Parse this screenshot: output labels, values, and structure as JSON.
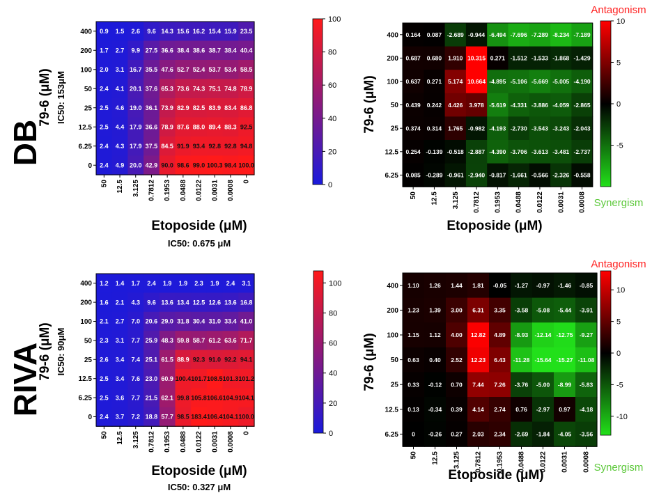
{
  "row_labels": [
    "DB",
    "RIVA"
  ],
  "legend_text": {
    "antagonism": "Antagonism",
    "synergism": "Synergism"
  },
  "colors": {
    "blue": "#1a1adc",
    "red": "#ff1a1a",
    "synergy_green": "#22e01a",
    "antagonism_red": "#ff0000",
    "black": "#000000",
    "antagonism_label": "#ff2020",
    "synergism_label": "#5cc83a"
  },
  "chart_data": [
    {
      "type": "heatmap",
      "ylabel": "79-6 (μM)",
      "ylabel_sub": "IC50: 153μM",
      "xlabel": "Etoposide (μM)",
      "xlabel_sub": "IC50: 0.675 μM",
      "x": [
        "50",
        "12.5",
        "3.125",
        "0.7812",
        "0.1953",
        "0.0488",
        "0.0122",
        "0.0031",
        "0.0008",
        "0"
      ],
      "y": [
        "400",
        "200",
        "100",
        "50",
        "25",
        "12.5",
        "6.25",
        "0"
      ],
      "values": [
        [
          0.9,
          1.5,
          2.6,
          9.6,
          14.3,
          15.6,
          16.2,
          15.4,
          15.9,
          23.5
        ],
        [
          1.7,
          2.7,
          9.9,
          27.5,
          36.6,
          38.4,
          38.6,
          38.7,
          38.4,
          40.4
        ],
        [
          2.0,
          3.1,
          16.7,
          35.5,
          47.6,
          52.7,
          52.4,
          53.7,
          53.4,
          58.5
        ],
        [
          2.4,
          4.1,
          20.1,
          37.6,
          65.3,
          73.6,
          74.3,
          75.1,
          74.8,
          78.9
        ],
        [
          2.5,
          4.6,
          19.0,
          36.1,
          73.9,
          82.9,
          82.5,
          83.9,
          83.4,
          86.8
        ],
        [
          2.5,
          4.4,
          17.9,
          36.6,
          78.9,
          87.6,
          88.0,
          89.4,
          88.3,
          92.5
        ],
        [
          2.4,
          4.3,
          17.9,
          37.5,
          84.5,
          91.9,
          93.4,
          92.8,
          92.8,
          94.8
        ],
        [
          2.4,
          4.9,
          20.0,
          42.9,
          90.0,
          98.6,
          99.0,
          100.3,
          98.4,
          100.0
        ]
      ],
      "labels": [
        [
          "0.9",
          "1.5",
          "2.6",
          "9.6",
          "14.3",
          "15.6",
          "16.2",
          "15.4",
          "15.9",
          "23.5"
        ],
        [
          "1.7",
          "2.7",
          "9.9",
          "27.5",
          "36.6",
          "38.4",
          "38.6",
          "38.7",
          "38.4",
          "40.4"
        ],
        [
          "2.0",
          "3.1",
          "16.7",
          "35.5",
          "47.6",
          "52.7",
          "52.4",
          "53.7",
          "53.4",
          "58.5"
        ],
        [
          "2.4",
          "4.1",
          "20.1",
          "37.6",
          "65.3",
          "73.6",
          "74.3",
          "75.1",
          "74.8",
          "78.9"
        ],
        [
          "2.5",
          "4.6",
          "19.0",
          "36.1",
          "73.9",
          "82.9",
          "82.5",
          "83.9",
          "83.4",
          "86.8"
        ],
        [
          "2.5",
          "4.4",
          "17.9",
          "36.6",
          "78.9",
          "87.6",
          "88.0",
          "89.4",
          "88.3",
          "92.5"
        ],
        [
          "2.4",
          "4.3",
          "17.9",
          "37.5",
          "84.5",
          "91.9",
          "93.4",
          "92.8",
          "92.8",
          "94.8"
        ],
        [
          "2.4",
          "4.9",
          "20.0",
          "42.9",
          "90.0",
          "98.6",
          "99.0",
          "100.3",
          "98.4",
          "100.0"
        ]
      ],
      "color_range": [
        0,
        100
      ],
      "colorbar_ticks": [
        "0",
        "20",
        "40",
        "60",
        "80",
        "100"
      ],
      "colorbar_tick_values": [
        0,
        20,
        40,
        60,
        80,
        100
      ]
    },
    {
      "type": "heatmap",
      "ylabel": "79-6 (μM)",
      "xlabel": "Etoposide (μM)",
      "x": [
        "50",
        "12.5",
        "3.125",
        "0.7812",
        "0.1953",
        "0.0488",
        "0.0122",
        "0.0031",
        "0.0008"
      ],
      "y": [
        "400",
        "200",
        "100",
        "50",
        "25",
        "12.5",
        "6.25"
      ],
      "values": [
        [
          0.164,
          0.087,
          -2.689,
          -0.944,
          -6.494,
          -7.696,
          -7.289,
          -8.234,
          -7.189
        ],
        [
          0.687,
          0.68,
          1.91,
          10.315,
          0.271,
          -1.512,
          -1.533,
          -1.868,
          -1.429
        ],
        [
          0.637,
          0.271,
          5.174,
          10.664,
          -4.895,
          -5.106,
          -5.669,
          -5.005,
          -4.19
        ],
        [
          0.439,
          0.242,
          4.426,
          3.978,
          -5.619,
          -4.331,
          -3.886,
          -4.059,
          -2.865
        ],
        [
          0.374,
          0.314,
          1.765,
          -0.982,
          -4.193,
          -2.73,
          -3.543,
          -3.243,
          -2.043
        ],
        [
          0.254,
          -0.139,
          -0.518,
          -2.887,
          -4.39,
          -3.706,
          -3.613,
          -3.481,
          -2.737
        ],
        [
          0.085,
          -0.289,
          -0.961,
          -2.94,
          -0.817,
          -1.661,
          -0.566,
          -2.326,
          -0.558
        ]
      ],
      "labels": [
        [
          "0.164",
          "0.087",
          "-2.689",
          "-0.944",
          "-6.494",
          "-7.696",
          "-7.289",
          "-8.234",
          "-7.189"
        ],
        [
          "0.687",
          "0.680",
          "1.910",
          "10.315",
          "0.271",
          "-1.512",
          "-1.533",
          "-1.868",
          "-1.429"
        ],
        [
          "0.637",
          "0.271",
          "5.174",
          "10.664",
          "-4.895",
          "-5.106",
          "-5.669",
          "-5.005",
          "-4.190"
        ],
        [
          "0.439",
          "0.242",
          "4.426",
          "3.978",
          "-5.619",
          "-4.331",
          "-3.886",
          "-4.059",
          "-2.865"
        ],
        [
          "0.374",
          "0.314",
          "1.765",
          "-0.982",
          "-4.193",
          "-2.730",
          "-3.543",
          "-3.243",
          "-2.043"
        ],
        [
          "0.254",
          "-0.139",
          "-0.518",
          "-2.887",
          "-4.390",
          "-3.706",
          "-3.613",
          "-3.481",
          "-2.737"
        ],
        [
          "0.085",
          "-0.289",
          "-0.961",
          "-2.940",
          "-0.817",
          "-1.661",
          "-0.566",
          "-2.326",
          "-0.558"
        ]
      ],
      "color_range": [
        -10,
        10
      ],
      "colorbar_ticks": [
        "10",
        "5",
        "0",
        "-5"
      ],
      "colorbar_tick_values": [
        10,
        5,
        0,
        -5
      ]
    },
    {
      "type": "heatmap",
      "ylabel": "79-6 (μM)",
      "ylabel_sub": "IC50: 90μM",
      "xlabel": "Etoposide (μM)",
      "xlabel_sub": "IC50: 0.327 μM",
      "x": [
        "50",
        "12.5",
        "3.125",
        "0.7812",
        "0.1953",
        "0.0488",
        "0.0122",
        "0.0031",
        "0.0008",
        "0"
      ],
      "y": [
        "400",
        "200",
        "100",
        "50",
        "25",
        "12.5",
        "6.25",
        "0"
      ],
      "values": [
        [
          1.2,
          1.4,
          1.7,
          2.4,
          1.9,
          1.9,
          2.3,
          1.9,
          2.4,
          3.1
        ],
        [
          1.6,
          2.1,
          4.3,
          9.6,
          13.6,
          13.4,
          12.5,
          12.6,
          13.6,
          16.8
        ],
        [
          2.1,
          2.7,
          7.0,
          20.6,
          29.0,
          31.8,
          30.4,
          31.0,
          33.4,
          41.0
        ],
        [
          2.3,
          3.1,
          7.7,
          25.9,
          48.3,
          59.8,
          58.7,
          61.2,
          63.6,
          71.7
        ],
        [
          2.6,
          3.4,
          7.4,
          25.1,
          61.5,
          88.9,
          92.3,
          91.0,
          92.2,
          94.1
        ],
        [
          2.5,
          3.4,
          7.6,
          23.0,
          60.9,
          100.4,
          101.7,
          108.5,
          101.3,
          101.2
        ],
        [
          2.5,
          3.6,
          7.7,
          21.5,
          62.1,
          99.8,
          105.8,
          106.6,
          104.9,
          104.1
        ],
        [
          2.4,
          3.7,
          7.2,
          18.8,
          57.7,
          98.5,
          183.4,
          106.4,
          104.1,
          100.0
        ]
      ],
      "labels": [
        [
          "1.2",
          "1.4",
          "1.7",
          "2.4",
          "1.9",
          "1.9",
          "2.3",
          "1.9",
          "2.4",
          "3.1"
        ],
        [
          "1.6",
          "2.1",
          "4.3",
          "9.6",
          "13.6",
          "13.4",
          "12.5",
          "12.6",
          "13.6",
          "16.8"
        ],
        [
          "2.1",
          "2.7",
          "7.0",
          "20.6",
          "29.0",
          "31.8",
          "30.4",
          "31.0",
          "33.4",
          "41.0"
        ],
        [
          "2.3",
          "3.1",
          "7.7",
          "25.9",
          "48.3",
          "59.8",
          "58.7",
          "61.2",
          "63.6",
          "71.7"
        ],
        [
          "2.6",
          "3.4",
          "7.4",
          "25.1",
          "61.5",
          "88.9",
          "92.3",
          "91.0",
          "92.2",
          "94.1"
        ],
        [
          "2.5",
          "3.4",
          "7.6",
          "23.0",
          "60.9",
          "100.4",
          "101.7",
          "108.5",
          "101.3",
          "101.2"
        ],
        [
          "2.5",
          "3.6",
          "7.7",
          "21.5",
          "62.1",
          "99.8",
          "105.8",
          "106.6",
          "104.9",
          "104.1"
        ],
        [
          "2.4",
          "3.7",
          "7.2",
          "18.8",
          "57.7",
          "98.5",
          "183.4",
          "106.4",
          "104.1",
          "100.0"
        ]
      ],
      "color_range": [
        0,
        108
      ],
      "colorbar_ticks": [
        "0",
        "20",
        "40",
        "60",
        "80",
        "100"
      ],
      "colorbar_tick_values": [
        0,
        20,
        40,
        60,
        80,
        100
      ]
    },
    {
      "type": "heatmap",
      "ylabel": "79-6 (μM)",
      "xlabel": "Etoposide (μM)",
      "x": [
        "50",
        "12.5",
        "3.125",
        "0.7812",
        "0.1953",
        "0.0488",
        "0.0122",
        "0.0031",
        "0.0008"
      ],
      "y": [
        "400",
        "200",
        "100",
        "50",
        "25",
        "12.5",
        "6.25"
      ],
      "values": [
        [
          1.1,
          1.26,
          1.44,
          1.81,
          -0.05,
          -1.27,
          -0.97,
          -1.46,
          -0.85
        ],
        [
          1.23,
          1.39,
          3.0,
          6.31,
          3.35,
          -3.58,
          -5.08,
          -5.44,
          -3.91
        ],
        [
          1.15,
          1.12,
          4.0,
          12.82,
          4.89,
          -8.93,
          -12.14,
          -12.75,
          -9.27
        ],
        [
          0.63,
          0.4,
          2.52,
          12.23,
          6.43,
          -11.28,
          -15.64,
          -15.27,
          -11.08
        ],
        [
          0.33,
          -0.12,
          0.7,
          7.44,
          7.26,
          -3.76,
          -5.0,
          -8.99,
          -5.83
        ],
        [
          0.13,
          -0.34,
          0.39,
          4.14,
          2.74,
          0.76,
          -2.97,
          0.97,
          -4.18
        ],
        [
          0,
          -0.26,
          0.27,
          2.03,
          2.34,
          -2.69,
          -1.84,
          -4.05,
          -3.56
        ]
      ],
      "labels": [
        [
          "1.10",
          "1.26",
          "1.44",
          "1.81",
          "-0.05",
          "-1.27",
          "-0.97",
          "-1.46",
          "-0.85"
        ],
        [
          "1.23",
          "1.39",
          "3.00",
          "6.31",
          "3.35",
          "-3.58",
          "-5.08",
          "-5.44",
          "-3.91"
        ],
        [
          "1.15",
          "1.12",
          "4.00",
          "12.82",
          "4.89",
          "-8.93",
          "-12.14",
          "-12.75",
          "-9.27"
        ],
        [
          "0.63",
          "0.40",
          "2.52",
          "12.23",
          "6.43",
          "-11.28",
          "-15.64",
          "-15.27",
          "-11.08"
        ],
        [
          "0.33",
          "-0.12",
          "0.70",
          "7.44",
          "7.26",
          "-3.76",
          "-5.00",
          "-8.99",
          "-5.83"
        ],
        [
          "0.13",
          "-0.34",
          "0.39",
          "4.14",
          "2.74",
          "0.76",
          "-2.97",
          "0.97",
          "-4.18"
        ],
        [
          "0",
          "-0.26",
          "0.27",
          "2.03",
          "2.34",
          "-2.69",
          "-1.84",
          "-4.05",
          "-3.56"
        ]
      ],
      "color_range": [
        -13,
        13
      ],
      "colorbar_ticks": [
        "10",
        "5",
        "0",
        "-5",
        "-10"
      ],
      "colorbar_tick_values": [
        10,
        5,
        0,
        -5,
        -10
      ]
    }
  ]
}
